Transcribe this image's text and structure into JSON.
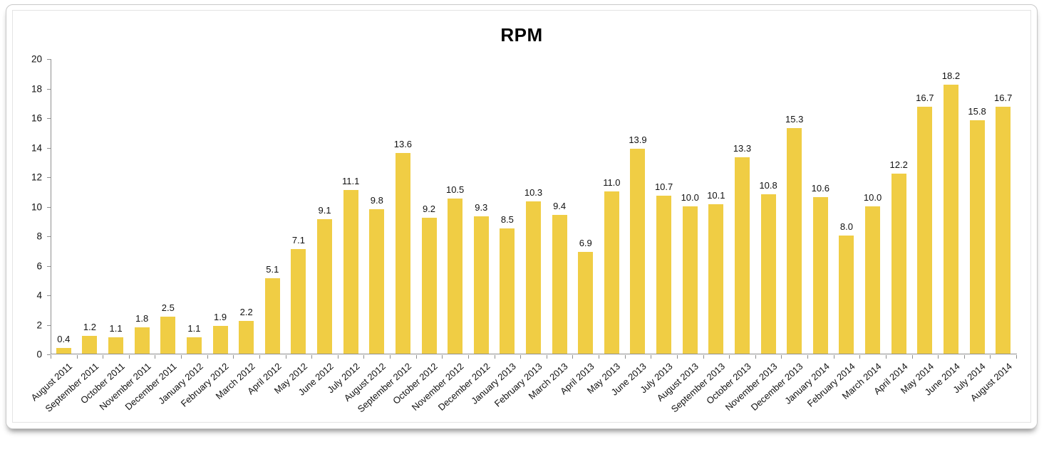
{
  "colors": {
    "bar": "#F0CD44",
    "axis": "#8F8F8F",
    "text": "#111111",
    "card_border": "#C9C9C9",
    "background": "#FFFFFF"
  },
  "chart_data": {
    "type": "bar",
    "title": "RPM",
    "categories": [
      "August 2011",
      "September 2011",
      "October 2011",
      "November 2011",
      "December 2011",
      "January 2012",
      "February 2012",
      "March 2012",
      "April 2012",
      "May 2012",
      "June 2012",
      "July 2012",
      "August 2012",
      "September 2012",
      "October 2012",
      "November 2012",
      "December 2012",
      "January 2013",
      "February 2013",
      "March 2013",
      "April 2013",
      "May 2013",
      "June 2013",
      "July 2013",
      "August 2013",
      "September 2013",
      "October 2013",
      "November 2013",
      "December 2013",
      "January 2014",
      "February 2014",
      "March 2014",
      "April 2014",
      "May 2014",
      "June 2014",
      "July 2014",
      "August 2014"
    ],
    "values": [
      0.4,
      1.2,
      1.1,
      1.8,
      2.5,
      1.1,
      1.9,
      2.2,
      5.1,
      7.1,
      9.1,
      11.1,
      9.8,
      13.6,
      9.2,
      10.5,
      9.3,
      8.5,
      10.3,
      9.4,
      6.9,
      11.0,
      13.9,
      10.7,
      10.0,
      10.1,
      13.3,
      10.8,
      15.3,
      10.6,
      8.0,
      10.0,
      12.2,
      16.7,
      18.2,
      15.8,
      16.7
    ],
    "value_label_decimals": 1,
    "ylim": [
      0,
      20
    ],
    "yticks": [
      0,
      2,
      4,
      6,
      8,
      10,
      12,
      14,
      16,
      18,
      20
    ],
    "grid": false,
    "legend": false,
    "x_label_rotation_deg": -42
  }
}
